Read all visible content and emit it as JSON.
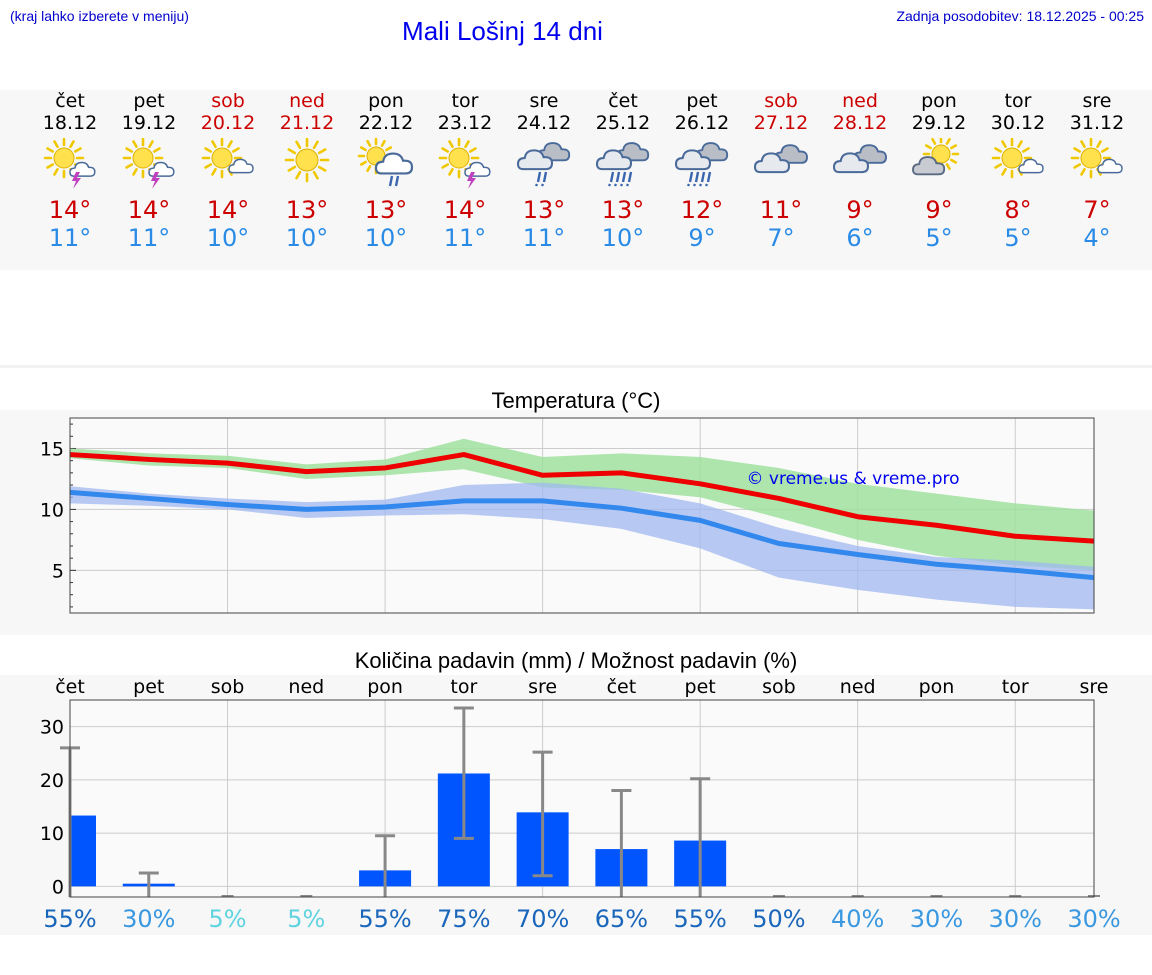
{
  "header": {
    "city_hint": "(kraj lahko izberete v meniju)",
    "title": "Mali Lošinj 14 dni",
    "updated": "Zadnja posodobitev: 18.12.2025 - 00:25"
  },
  "colors": {
    "max_temp": "#cc0000",
    "min_temp": "#2a8be6",
    "max_line": "#ee0000",
    "min_line": "#3388ee",
    "max_band": "#9fe09f",
    "min_band": "#a0b8f0",
    "bar": "#0055ff"
  },
  "days": [
    {
      "name": "čet",
      "date": "18.12",
      "weekend": false,
      "icon": "sun-cloud-thunder-icon",
      "tmax": "14°",
      "tmin": "11°"
    },
    {
      "name": "pet",
      "date": "19.12",
      "weekend": false,
      "icon": "sun-cloud-thunder-icon",
      "tmax": "14°",
      "tmin": "11°"
    },
    {
      "name": "sob",
      "date": "20.12",
      "weekend": true,
      "icon": "sun-small-cloud-icon",
      "tmax": "14°",
      "tmin": "10°"
    },
    {
      "name": "ned",
      "date": "21.12",
      "weekend": true,
      "icon": "sun-icon",
      "tmax": "13°",
      "tmin": "10°"
    },
    {
      "name": "pon",
      "date": "22.12",
      "weekend": false,
      "icon": "sun-cloud-rain-icon",
      "tmax": "13°",
      "tmin": "10°"
    },
    {
      "name": "tor",
      "date": "23.12",
      "weekend": false,
      "icon": "sun-cloud-thunder-icon",
      "tmax": "14°",
      "tmin": "11°"
    },
    {
      "name": "sre",
      "date": "24.12",
      "weekend": false,
      "icon": "cloud-rain-icon",
      "tmax": "13°",
      "tmin": "11°"
    },
    {
      "name": "čet",
      "date": "25.12",
      "weekend": false,
      "icon": "cloud-heavy-rain-icon",
      "tmax": "13°",
      "tmin": "10°"
    },
    {
      "name": "pet",
      "date": "26.12",
      "weekend": false,
      "icon": "cloud-heavy-rain-icon",
      "tmax": "12°",
      "tmin": "9°"
    },
    {
      "name": "sob",
      "date": "27.12",
      "weekend": true,
      "icon": "cloud-icon",
      "tmax": "11°",
      "tmin": "7°"
    },
    {
      "name": "ned",
      "date": "28.12",
      "weekend": true,
      "icon": "cloud-icon",
      "tmax": "9°",
      "tmin": "6°"
    },
    {
      "name": "pon",
      "date": "29.12",
      "weekend": false,
      "icon": "sun-behind-cloud-icon",
      "tmax": "9°",
      "tmin": "5°"
    },
    {
      "name": "tor",
      "date": "30.12",
      "weekend": false,
      "icon": "sun-small-cloud-icon",
      "tmax": "8°",
      "tmin": "5°"
    },
    {
      "name": "sre",
      "date": "31.12",
      "weekend": false,
      "icon": "sun-small-cloud-icon",
      "tmax": "7°",
      "tmin": "4°"
    }
  ],
  "chart_data": [
    {
      "type": "line",
      "title": "Temperatura (°C)",
      "watermark": "© vreme.us & vreme.pro",
      "ylim": [
        1.5,
        17.5
      ],
      "yticks": [
        5,
        10,
        15
      ],
      "x": [
        0,
        1,
        2,
        3,
        4,
        5,
        6,
        7,
        8,
        9,
        10,
        11,
        12,
        13
      ],
      "series": [
        {
          "name": "max",
          "values": [
            14.5,
            14.1,
            13.8,
            13.1,
            13.4,
            14.5,
            12.8,
            13.0,
            12.1,
            10.9,
            9.4,
            8.7,
            7.8,
            7.4
          ],
          "band_low": [
            14.2,
            13.6,
            13.4,
            12.5,
            12.8,
            13.3,
            11.8,
            11.6,
            11.0,
            9.3,
            7.5,
            6.2,
            5.4,
            5.0
          ],
          "band_high": [
            15.0,
            14.6,
            14.4,
            13.7,
            14.1,
            15.8,
            14.3,
            14.6,
            14.3,
            13.4,
            12.1,
            11.3,
            10.5,
            9.9
          ]
        },
        {
          "name": "min",
          "values": [
            11.4,
            10.9,
            10.4,
            10.0,
            10.2,
            10.7,
            10.7,
            10.1,
            9.1,
            7.2,
            6.3,
            5.5,
            5.0,
            4.4
          ],
          "band_low": [
            10.5,
            10.3,
            10.0,
            9.3,
            9.5,
            9.6,
            9.2,
            8.4,
            6.8,
            4.4,
            3.4,
            2.6,
            2.0,
            1.8
          ],
          "band_high": [
            11.9,
            11.3,
            10.9,
            10.6,
            10.8,
            12.0,
            12.2,
            11.7,
            10.5,
            8.5,
            7.0,
            6.1,
            5.8,
            5.3
          ]
        }
      ]
    },
    {
      "type": "bar",
      "title": "Količina padavin (mm) / Možnost padavin (%)",
      "categories": [
        "čet",
        "pet",
        "sob",
        "ned",
        "pon",
        "tor",
        "sre",
        "čet",
        "pet",
        "sob",
        "ned",
        "pon",
        "tor",
        "sre"
      ],
      "ylim": [
        -2,
        35
      ],
      "yticks": [
        0,
        10,
        20,
        30
      ],
      "values": [
        13.3,
        0.5,
        0,
        0,
        3.0,
        21.2,
        13.9,
        7.0,
        8.6,
        0,
        0,
        0,
        0,
        0
      ],
      "error_low": [
        0,
        0,
        0,
        0,
        0,
        9.0,
        2.0,
        0,
        0,
        0,
        0,
        0,
        0,
        0
      ],
      "error_high": [
        26.0,
        2.5,
        0,
        0,
        9.5,
        33.5,
        25.2,
        18.0,
        20.2,
        0,
        0,
        0,
        0,
        0
      ],
      "probability": [
        "55%",
        "30%",
        "5%",
        "5%",
        "55%",
        "75%",
        "70%",
        "65%",
        "55%",
        "50%",
        "40%",
        "30%",
        "30%",
        "30%"
      ],
      "probability_colors": [
        "#1a66bb",
        "#3a98e0",
        "#5fd3e0",
        "#5fd3e0",
        "#1a66bb",
        "#1a66bb",
        "#1a66bb",
        "#1a66bb",
        "#1a66bb",
        "#1a66bb",
        "#3a98e0",
        "#3a98e0",
        "#3a98e0",
        "#3a98e0"
      ]
    }
  ]
}
